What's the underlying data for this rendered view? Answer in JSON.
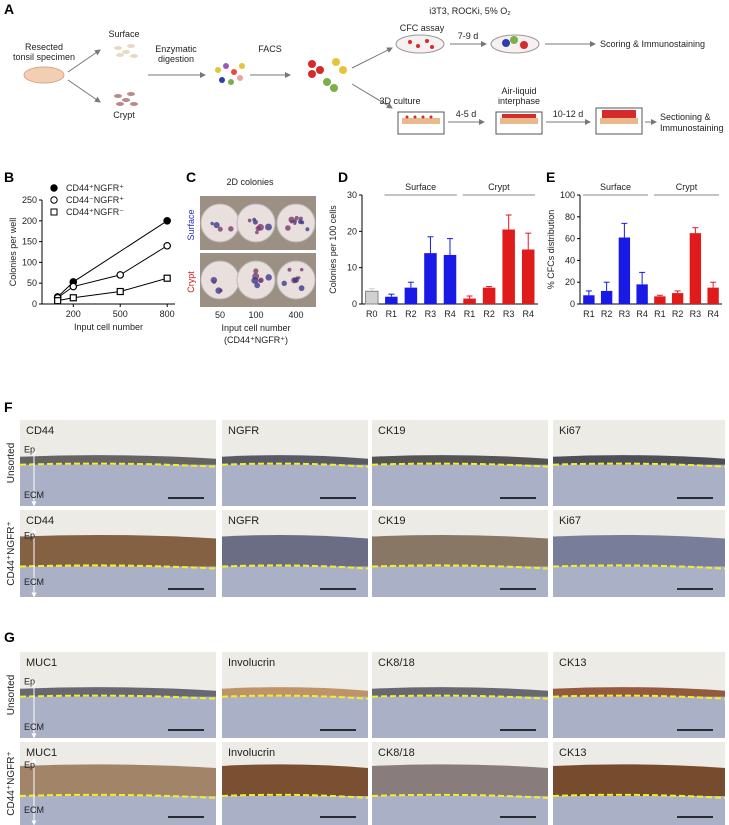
{
  "panel_labels": [
    "A",
    "B",
    "C",
    "D",
    "E",
    "F",
    "G"
  ],
  "schematic": {
    "specimen": [
      "Resected",
      "tonsil specimen"
    ],
    "surface": "Surface",
    "crypt": "Crypt",
    "digestion": [
      "Enzymatic",
      "digestion"
    ],
    "facs": "FACS",
    "conditions": "i3T3, ROCKi, 5% O₂",
    "cfc_assay": "CFC assay",
    "cfc_time": "7-9 d",
    "cfc_readout": "Scoring & Immunostaining",
    "culture_3d": "3D culture",
    "ali_time": "4-5 d",
    "ali": [
      "Air-liquid",
      "interphase"
    ],
    "ali_time2": "10-12 d",
    "ali_readout": [
      "Sectioning &",
      "Immunostaining"
    ]
  },
  "colonies_2d": {
    "title": "2D colonies",
    "rows": [
      "Surface",
      "Crypt"
    ],
    "columns": [
      "50",
      "100",
      "400"
    ],
    "x_label": [
      "Input  cell number",
      "(CD44⁺NGFR⁺)"
    ]
  },
  "chart_data": [
    {
      "type": "line",
      "x_label": "Input cell number",
      "y_label": "Colonies per well",
      "xlim": [
        0,
        850
      ],
      "xticks": [
        200,
        500,
        800
      ],
      "ylim": [
        0,
        250
      ],
      "yticks": [
        0,
        50,
        100,
        150,
        200,
        250
      ],
      "legend": "upper left",
      "series": [
        {
          "name": "CD44⁺NGFR⁺",
          "color": "#000000",
          "marker": "filled-circle",
          "x": [
            100,
            200,
            800
          ],
          "values": [
            17,
            53,
            200
          ]
        },
        {
          "name": "CD44⁻NGFR⁺",
          "color": "#000000",
          "marker": "open-circle",
          "x": [
            100,
            200,
            500,
            800
          ],
          "values": [
            15,
            42,
            70,
            140
          ]
        },
        {
          "name": "CD44⁺NGFR⁻",
          "color": "#000000",
          "marker": "open-square",
          "x": [
            100,
            200,
            500,
            800
          ],
          "values": [
            8,
            15,
            30,
            62
          ]
        }
      ]
    },
    {
      "type": "bar",
      "y_label": "Colonies per 100 cells",
      "categories": [
        "R0",
        "R1",
        "R2",
        "R3",
        "R4",
        "R1",
        "R2",
        "R3",
        "R4"
      ],
      "values": [
        3.5,
        2,
        4.5,
        14,
        13.5,
        1.5,
        4.5,
        20.5,
        15
      ],
      "errors": [
        0.7,
        0.7,
        1.5,
        4.5,
        4.5,
        0.7,
        0.3,
        4,
        4.5
      ],
      "colors": [
        "#d0d0d0",
        "#1a1ae6",
        "#1a1ae6",
        "#1a1ae6",
        "#1a1ae6",
        "#e01b1b",
        "#e01b1b",
        "#e01b1b",
        "#e01b1b"
      ],
      "group_labels": [
        "Surface",
        "Crypt"
      ],
      "ylim": [
        0,
        30
      ],
      "yticks": [
        0,
        10,
        20,
        30
      ]
    },
    {
      "type": "bar",
      "y_label": "% CFCs distribution",
      "categories": [
        "R1",
        "R2",
        "R3",
        "R4",
        "R1",
        "R2",
        "R3",
        "R4"
      ],
      "values": [
        8,
        12,
        61,
        18,
        7,
        10,
        65,
        15
      ],
      "errors": [
        4,
        8,
        13,
        11,
        1,
        2,
        5,
        5
      ],
      "colors": [
        "#1a1ae6",
        "#1a1ae6",
        "#1a1ae6",
        "#1a1ae6",
        "#e01b1b",
        "#e01b1b",
        "#e01b1b",
        "#e01b1b"
      ],
      "group_labels": [
        "Surface",
        "Crypt"
      ],
      "ylim": [
        0,
        100
      ],
      "yticks": [
        0,
        20,
        40,
        60,
        80,
        100
      ]
    }
  ],
  "micrographs": {
    "layer_labels": [
      "Ep",
      "ECM"
    ],
    "F": {
      "rows": [
        "Unsorted",
        "CD44⁺NGFR⁺"
      ],
      "stains": [
        "CD44",
        "NGFR",
        "CK19",
        "Ki67"
      ]
    },
    "G": {
      "rows": [
        "Unsorted",
        "CD44⁺NGFR⁺"
      ],
      "stains": [
        "MUC1",
        "Involucrin",
        "CK8/18",
        "CK13"
      ]
    }
  }
}
